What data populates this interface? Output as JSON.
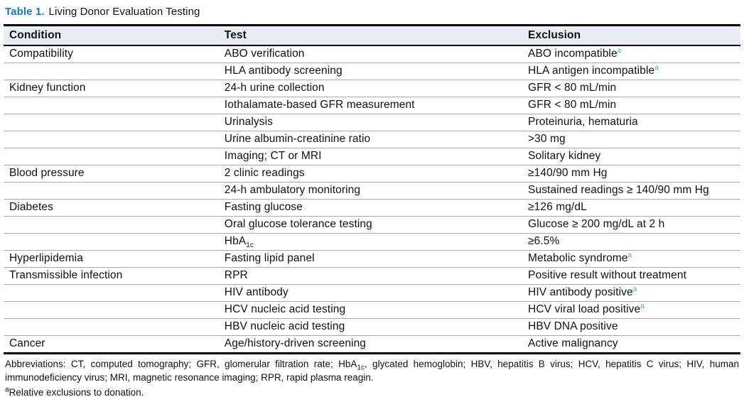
{
  "caption": {
    "label": "Table 1.",
    "title": "Living Donor Evaluation Testing"
  },
  "colors": {
    "caption_label_blue": "#1878b8",
    "footnote_marker_blue": "#41a3da",
    "header_row_background": "#e7edf4",
    "rule_black": "#000000",
    "row_separator_gray": "#a8a8a8"
  },
  "table": {
    "columns": [
      "Condition",
      "Test",
      "Exclusion"
    ],
    "rows": [
      {
        "condition": [
          [
            "Compatibility"
          ]
        ],
        "test": [
          [
            "ABO verification"
          ]
        ],
        "exclusion": [
          [
            "ABO incompatible"
          ],
          [
            "a",
            "sup"
          ]
        ]
      },
      {
        "condition": [],
        "test": [
          [
            "HLA antibody screening"
          ]
        ],
        "exclusion": [
          [
            "HLA antigen incompatible"
          ],
          [
            "a",
            "sup"
          ]
        ]
      },
      {
        "condition": [
          [
            "Kidney function"
          ]
        ],
        "test": [
          [
            "24-h urine collection"
          ]
        ],
        "exclusion": [
          [
            "GFR < 80 mL/min"
          ]
        ]
      },
      {
        "condition": [],
        "test": [
          [
            "Iothalamate-based GFR measurement"
          ]
        ],
        "exclusion": [
          [
            "GFR < 80 mL/min"
          ]
        ]
      },
      {
        "condition": [],
        "test": [
          [
            "Urinalysis"
          ]
        ],
        "exclusion": [
          [
            "Proteinuria, hematuria"
          ]
        ]
      },
      {
        "condition": [],
        "test": [
          [
            "Urine albumin-creatinine ratio"
          ]
        ],
        "exclusion": [
          [
            ">30 mg"
          ]
        ]
      },
      {
        "condition": [],
        "test": [
          [
            "Imaging; CT or MRI"
          ]
        ],
        "exclusion": [
          [
            "Solitary kidney"
          ]
        ]
      },
      {
        "condition": [
          [
            "Blood pressure"
          ]
        ],
        "test": [
          [
            "2 clinic readings"
          ]
        ],
        "exclusion": [
          [
            "≥140/90 mm Hg"
          ]
        ]
      },
      {
        "condition": [],
        "test": [
          [
            "24-h ambulatory monitoring"
          ]
        ],
        "exclusion": [
          [
            "Sustained readings ≥ 140/90 mm Hg"
          ]
        ]
      },
      {
        "condition": [
          [
            "Diabetes"
          ]
        ],
        "test": [
          [
            "Fasting glucose"
          ]
        ],
        "exclusion": [
          [
            "≥126 mg/dL"
          ]
        ]
      },
      {
        "condition": [],
        "test": [
          [
            "Oral glucose tolerance testing"
          ]
        ],
        "exclusion": [
          [
            "Glucose ≥ 200 mg/dL at 2 h"
          ]
        ]
      },
      {
        "condition": [],
        "test": [
          [
            "HbA"
          ],
          [
            "1c",
            "sub"
          ]
        ],
        "exclusion": [
          [
            "≥6.5%"
          ]
        ]
      },
      {
        "condition": [
          [
            "Hyperlipidemia"
          ]
        ],
        "test": [
          [
            "Fasting lipid panel"
          ]
        ],
        "exclusion": [
          [
            "Metabolic syndrome"
          ],
          [
            "a",
            "sup"
          ]
        ]
      },
      {
        "condition": [
          [
            "Transmissible infection"
          ]
        ],
        "test": [
          [
            "RPR"
          ]
        ],
        "exclusion": [
          [
            "Positive result without treatment"
          ]
        ]
      },
      {
        "condition": [],
        "test": [
          [
            "HIV antibody"
          ]
        ],
        "exclusion": [
          [
            "HIV antibody positive"
          ],
          [
            "a",
            "sup"
          ]
        ]
      },
      {
        "condition": [],
        "test": [
          [
            "HCV nucleic acid testing"
          ]
        ],
        "exclusion": [
          [
            "HCV viral load positive"
          ],
          [
            "a",
            "sup"
          ]
        ]
      },
      {
        "condition": [],
        "test": [
          [
            "HBV nucleic acid testing"
          ]
        ],
        "exclusion": [
          [
            "HBV DNA positive"
          ]
        ]
      },
      {
        "condition": [
          [
            "Cancer"
          ]
        ],
        "test": [
          [
            "Age/history-driven screening"
          ]
        ],
        "exclusion": [
          [
            "Active malignancy"
          ]
        ]
      }
    ]
  },
  "footnotes": {
    "abbreviations": [
      [
        "Abbreviations: CT, computed tomography; GFR, glomerular filtration rate; HbA"
      ],
      [
        "1c",
        "sub"
      ],
      [
        ", glycated hemoglobin; HBV, hepatitis B virus; HCV, hepatitis C virus; HIV, human immunodeficiency virus; MRI, magnetic resonance imaging; RPR, rapid plasma reagin."
      ]
    ],
    "note_a": [
      [
        "a",
        "supk"
      ],
      [
        "Relative exclusions to donation."
      ]
    ]
  }
}
